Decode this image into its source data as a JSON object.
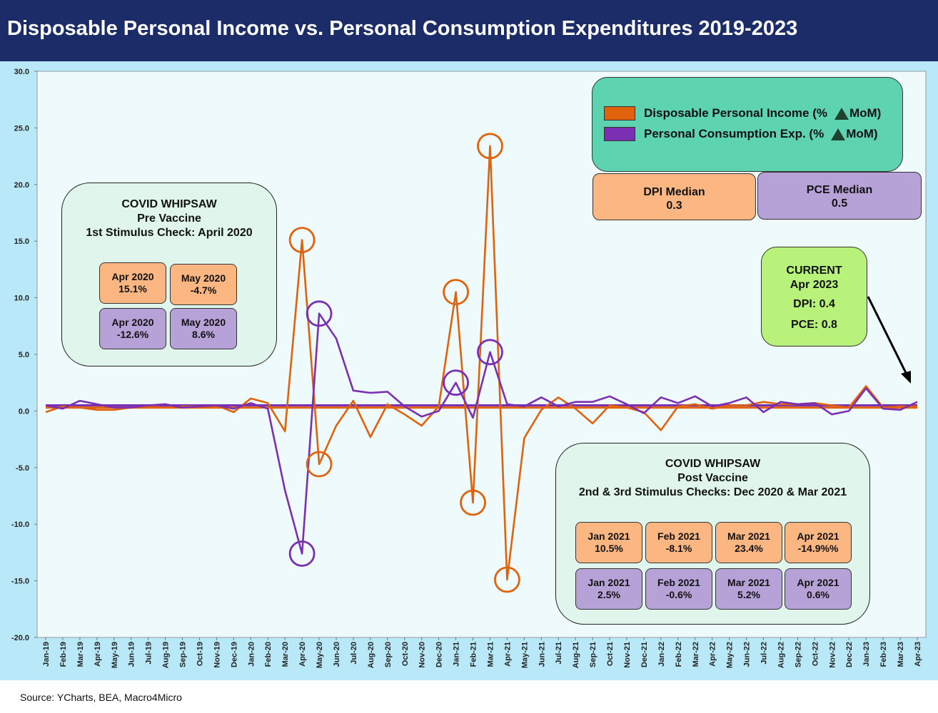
{
  "title": "Disposable Personal Income vs. Personal Consumption Expenditures 2019-2023",
  "source": "Source: YCharts, BEA, Macro4Micro",
  "colors": {
    "dpi": "#e0620c",
    "pce": "#7b2fb2",
    "header": "#1c2c68",
    "plot": "#eefafb",
    "legend": "#5dd3b0"
  },
  "legend": {
    "dpi_label": "Disposable Personal Income (%",
    "pce_label": "Personal Consumption Exp. (%",
    "suffix": "MoM)",
    "delta_icon": "triangle-up-icon"
  },
  "medians": {
    "dpi": {
      "title": "DPI Median",
      "value": "0.3"
    },
    "pce": {
      "title": "PCE Median",
      "value": "0.5"
    }
  },
  "current": {
    "l1": "CURRENT",
    "l2": "Apr 2023",
    "l3": "DPI: 0.4",
    "l4": "PCE: 0.8"
  },
  "pre_vaccine": {
    "l1": "COVID WHIPSAW",
    "l2": "Pre Vaccine",
    "l3": "1st Stimulus Check: April 2020",
    "cells": [
      {
        "m": "Apr 2020",
        "v": "15.1%",
        "kind": "dpi"
      },
      {
        "m": "May 2020",
        "v": "-4.7%",
        "kind": "dpi"
      },
      {
        "m": "Apr 2020",
        "v": "-12.6%",
        "kind": "pce"
      },
      {
        "m": "May 2020",
        "v": "8.6%",
        "kind": "pce"
      }
    ]
  },
  "post_vaccine": {
    "l1": "COVID WHIPSAW",
    "l2": "Post Vaccine",
    "l3": "2nd & 3rd Stimulus Checks: Dec 2020 & Mar 2021",
    "cells": [
      {
        "m": "Jan 2021",
        "v": "10.5%",
        "kind": "dpi"
      },
      {
        "m": "Feb 2021",
        "v": "-8.1%",
        "kind": "dpi"
      },
      {
        "m": "Mar 2021",
        "v": "23.4%",
        "kind": "dpi"
      },
      {
        "m": "Apr 2021",
        "v": "-14.9%%",
        "kind": "dpi"
      },
      {
        "m": "Jan 2021",
        "v": "2.5%",
        "kind": "pce"
      },
      {
        "m": "Feb 2021",
        "v": "-0.6%",
        "kind": "pce"
      },
      {
        "m": "Mar 2021",
        "v": "5.2%",
        "kind": "pce"
      },
      {
        "m": "Apr 2021",
        "v": "0.6%",
        "kind": "pce"
      }
    ]
  },
  "chart_data": {
    "type": "line",
    "ylim": [
      -20,
      30
    ],
    "yticks": [
      "-20.0",
      "-15.0",
      "-10.0",
      "-5.0",
      "0.0",
      "5.0",
      "10.0",
      "15.0",
      "20.0",
      "25.0",
      "30.0"
    ],
    "x": [
      "Jan-19",
      "Feb-19",
      "Mar-19",
      "Apr-19",
      "May-19",
      "Jun-19",
      "Jul-19",
      "Aug-19",
      "Sep-19",
      "Oct-19",
      "Nov-19",
      "Dec-19",
      "Jan-20",
      "Feb-20",
      "Mar-20",
      "Apr-20",
      "May-20",
      "Jun-20",
      "Jul-20",
      "Aug-20",
      "Sep-20",
      "Oct-20",
      "Nov-20",
      "Dec-20",
      "Jan-21",
      "Feb-21",
      "Mar-21",
      "Apr-21",
      "May-21",
      "Jun-21",
      "Jul-21",
      "Aug-21",
      "Sep-21",
      "Oct-21",
      "Nov-21",
      "Dec-21",
      "Jan-22",
      "Feb-22",
      "Mar-22",
      "Apr-22",
      "May-22",
      "Jun-22",
      "Jul-22",
      "Aug-22",
      "Sep-22",
      "Oct-22",
      "Nov-22",
      "Dec-22",
      "Jan-23",
      "Feb-23",
      "Mar-23",
      "Apr-23"
    ],
    "series": [
      {
        "name": "Disposable Personal Income (% MoM)",
        "color": "#e0620c",
        "values": [
          -0.1,
          0.4,
          0.3,
          0.1,
          0.1,
          0.3,
          0.4,
          0.3,
          0.4,
          0.4,
          0.5,
          -0.1,
          1.1,
          0.7,
          -1.8,
          15.1,
          -4.7,
          -1.3,
          0.9,
          -2.3,
          0.6,
          -0.3,
          -1.3,
          0.4,
          10.5,
          -8.1,
          23.4,
          -14.9,
          -2.4,
          0.1,
          1.2,
          0.2,
          -1.1,
          0.5,
          0.3,
          -0.1,
          -1.7,
          0.4,
          0.6,
          0.2,
          0.5,
          0.5,
          0.8,
          0.6,
          0.6,
          0.7,
          0.5,
          0.3,
          2.2,
          0.3,
          0.4,
          0.4
        ]
      },
      {
        "name": "Personal Consumption Exp. (% MoM)",
        "color": "#7b2fb2",
        "values": [
          0.5,
          0.2,
          0.9,
          0.6,
          0.3,
          0.3,
          0.5,
          0.6,
          0.3,
          0.4,
          0.5,
          0.2,
          0.7,
          0.2,
          -7.0,
          -12.6,
          8.6,
          6.4,
          1.8,
          1.6,
          1.7,
          0.4,
          -0.5,
          0.0,
          2.5,
          -0.6,
          5.2,
          0.6,
          0.4,
          1.2,
          0.4,
          0.8,
          0.8,
          1.3,
          0.6,
          -0.2,
          1.2,
          0.7,
          1.3,
          0.4,
          0.7,
          1.2,
          -0.1,
          0.8,
          0.6,
          0.7,
          -0.3,
          0.0,
          2.0,
          0.2,
          0.1,
          0.8
        ]
      }
    ],
    "median_lines": [
      0.3,
      0.5
    ],
    "circled": [
      {
        "series": 0,
        "index": 15
      },
      {
        "series": 0,
        "index": 16
      },
      {
        "series": 0,
        "index": 24
      },
      {
        "series": 0,
        "index": 25
      },
      {
        "series": 0,
        "index": 26
      },
      {
        "series": 0,
        "index": 27
      },
      {
        "series": 1,
        "index": 15
      },
      {
        "series": 1,
        "index": 16
      },
      {
        "series": 1,
        "index": 24
      },
      {
        "series": 1,
        "index": 26
      }
    ]
  }
}
